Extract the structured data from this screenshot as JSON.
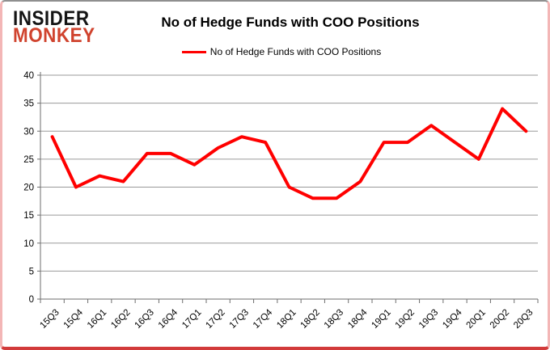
{
  "brand": {
    "line1": "INSIDER",
    "line2": "MONKEY",
    "line1_color": "#141414",
    "line2_color": "#d0432e"
  },
  "chart_data": {
    "type": "line",
    "title": "No of Hedge Funds with COO Positions",
    "xlabel": "",
    "ylabel": "",
    "categories": [
      "15Q3",
      "15Q4",
      "16Q1",
      "16Q2",
      "16Q3",
      "16Q4",
      "17Q1",
      "17Q2",
      "17Q3",
      "17Q4",
      "18Q1",
      "18Q2",
      "18Q3",
      "18Q4",
      "19Q1",
      "19Q2",
      "19Q3",
      "19Q4",
      "20Q1",
      "20Q2",
      "20Q3"
    ],
    "series": [
      {
        "name": "No of Hedge Funds with COO Positions",
        "values": [
          29,
          20,
          22,
          21,
          26,
          26,
          24,
          27,
          29,
          28,
          20,
          18,
          18,
          21,
          28,
          28,
          31,
          28,
          25,
          34,
          30
        ],
        "color": "#ff0000"
      }
    ],
    "ylim": [
      0,
      40
    ],
    "ytick_step": 5,
    "grid": true,
    "legend_position": "top",
    "colors": {
      "gridline": "#9a9a9a",
      "axis": "#6e6e6e",
      "tick_text": "#000000",
      "background": "#ffffff"
    }
  }
}
